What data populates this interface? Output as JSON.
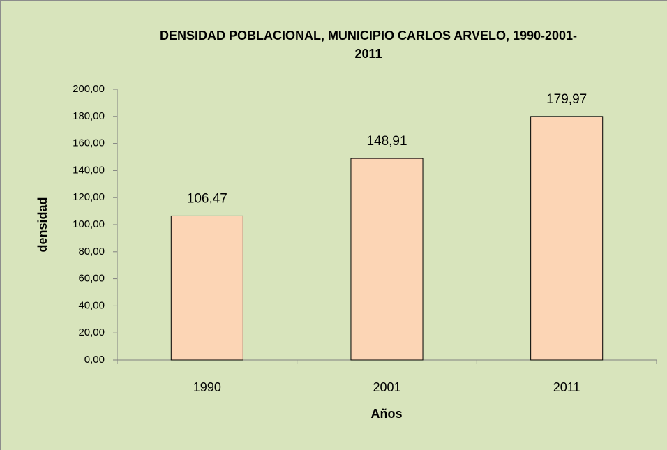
{
  "chart_data": {
    "type": "bar",
    "title": "DENSIDAD POBLACIONAL, MUNICIPIO CARLOS ARVELO, 1990-2001-2011",
    "x_label": "Años",
    "y_label": "densidad",
    "categories": [
      "1990",
      "2001",
      "2011"
    ],
    "values": [
      106.47,
      148.91,
      179.97
    ],
    "value_labels": [
      "106,47",
      "148,91",
      "179,97"
    ],
    "color": "#fcd5b5",
    "ylim": [
      0,
      200
    ],
    "yticks": [
      {
        "value": 0,
        "label": "0,00"
      },
      {
        "value": 20,
        "label": "20,00"
      },
      {
        "value": 40,
        "label": "40,00"
      },
      {
        "value": 60,
        "label": "60,00"
      },
      {
        "value": 80,
        "label": "80,00"
      },
      {
        "value": 100,
        "label": "100,00"
      },
      {
        "value": 120,
        "label": "120,00"
      },
      {
        "value": 140,
        "label": "140,00"
      },
      {
        "value": 160,
        "label": "160,00"
      },
      {
        "value": 180,
        "label": "180,00"
      },
      {
        "value": 200,
        "label": "200,00"
      }
    ],
    "grid": false
  }
}
